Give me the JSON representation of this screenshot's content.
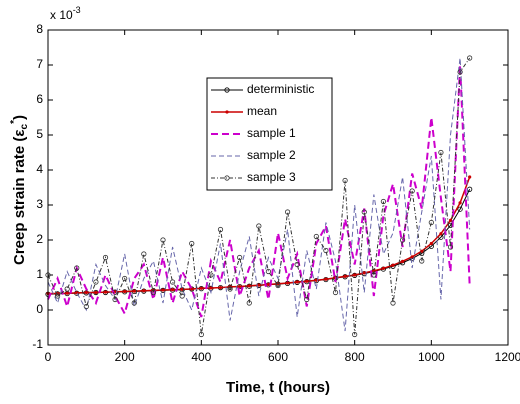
{
  "chart_data": {
    "type": "line",
    "xlabel": "Time, t (hours)",
    "ylabel": {
      "text": "Creep strain rate (ε",
      "sub": "c",
      "sup": "*",
      "close": ")"
    },
    "y_multiplier": {
      "base": "x 10",
      "exponent": "-3"
    },
    "xlim": [
      0,
      1200
    ],
    "xticks": [
      0,
      200,
      400,
      600,
      800,
      1000,
      1200
    ],
    "ylim": [
      -1,
      8
    ],
    "yticks": [
      -1,
      0,
      1,
      2,
      3,
      4,
      5,
      6,
      7,
      8
    ],
    "grid": false,
    "legend": "upper-center",
    "x": [
      0,
      25,
      50,
      75,
      100,
      125,
      150,
      175,
      200,
      225,
      250,
      275,
      300,
      325,
      350,
      375,
      400,
      425,
      450,
      475,
      500,
      525,
      550,
      575,
      600,
      625,
      650,
      675,
      700,
      725,
      750,
      775,
      800,
      825,
      850,
      875,
      900,
      925,
      950,
      975,
      1000,
      1025,
      1050,
      1075,
      1100
    ],
    "series": [
      {
        "name": "deterministic",
        "color": "#000000",
        "dash": "none",
        "width": 1,
        "marker": "circle",
        "values": [
          0.45,
          0.46,
          0.47,
          0.48,
          0.49,
          0.5,
          0.5,
          0.51,
          0.52,
          0.53,
          0.54,
          0.55,
          0.56,
          0.57,
          0.58,
          0.6,
          0.61,
          0.62,
          0.64,
          0.65,
          0.67,
          0.68,
          0.7,
          0.72,
          0.74,
          0.76,
          0.79,
          0.81,
          0.84,
          0.87,
          0.91,
          0.95,
          0.99,
          1.04,
          1.1,
          1.17,
          1.25,
          1.35,
          1.47,
          1.62,
          1.82,
          2.08,
          2.42,
          2.88,
          3.45
        ]
      },
      {
        "name": "mean",
        "color": "#cc0000",
        "dash": "none",
        "width": 1.5,
        "marker": "dot",
        "values": [
          0.47,
          0.47,
          0.48,
          0.49,
          0.5,
          0.5,
          0.51,
          0.52,
          0.53,
          0.54,
          0.55,
          0.56,
          0.57,
          0.58,
          0.59,
          0.6,
          0.62,
          0.63,
          0.64,
          0.66,
          0.67,
          0.69,
          0.71,
          0.73,
          0.75,
          0.77,
          0.8,
          0.82,
          0.85,
          0.88,
          0.92,
          0.96,
          1.0,
          1.06,
          1.12,
          1.19,
          1.28,
          1.39,
          1.52,
          1.68,
          1.9,
          2.18,
          2.56,
          3.06,
          3.8
        ]
      },
      {
        "name": "sample 1",
        "color": "#cc00cc",
        "dash": "7 4",
        "width": 2,
        "marker": "none",
        "values": [
          0.3,
          0.9,
          0.1,
          1.2,
          0.6,
          0.2,
          1.0,
          0.4,
          -0.1,
          0.9,
          1.3,
          0.3,
          1.5,
          0.2,
          1.1,
          0.6,
          -0.2,
          1.4,
          0.8,
          2.0,
          0.4,
          1.2,
          1.7,
          0.3,
          2.2,
          0.9,
          1.6,
          0.1,
          1.9,
          2.4,
          0.8,
          2.6,
          1.3,
          2.9,
          0.4,
          2.7,
          3.6,
          1.8,
          3.9,
          2.9,
          5.5,
          3.2,
          1.1,
          7.0,
          0.7
        ]
      },
      {
        "name": "sample 2",
        "color": "#6666aa",
        "dash": "5 3",
        "width": 1,
        "marker": "none",
        "values": [
          0.8,
          0.2,
          1.1,
          0.5,
          0.0,
          1.3,
          0.7,
          0.3,
          1.6,
          0.1,
          0.9,
          1.4,
          0.2,
          1.8,
          0.6,
          0.0,
          1.2,
          0.5,
          1.9,
          -0.3,
          1.1,
          2.1,
          0.4,
          1.5,
          0.9,
          2.3,
          -0.2,
          1.7,
          0.6,
          2.5,
          1.4,
          -0.6,
          3.0,
          0.5,
          3.3,
          1.6,
          2.2,
          3.8,
          1.2,
          2.8,
          4.4,
          0.3,
          5.0,
          7.2,
          2.3
        ]
      },
      {
        "name": "sample 3",
        "color": "#333333",
        "dash": "4 2 1 2",
        "width": 1,
        "marker": "circle",
        "values": [
          1.0,
          0.4,
          0.6,
          1.2,
          0.1,
          0.8,
          1.5,
          0.3,
          0.9,
          0.2,
          1.6,
          0.5,
          2.0,
          0.8,
          0.4,
          1.9,
          -0.7,
          1.0,
          2.3,
          0.6,
          1.5,
          0.2,
          2.4,
          1.1,
          0.7,
          2.8,
          1.3,
          0.3,
          2.1,
          1.7,
          0.5,
          3.7,
          -0.7,
          2.8,
          1.0,
          3.1,
          0.2,
          2.0,
          3.4,
          1.4,
          2.5,
          4.5,
          1.8,
          6.8,
          7.2
        ]
      }
    ]
  }
}
